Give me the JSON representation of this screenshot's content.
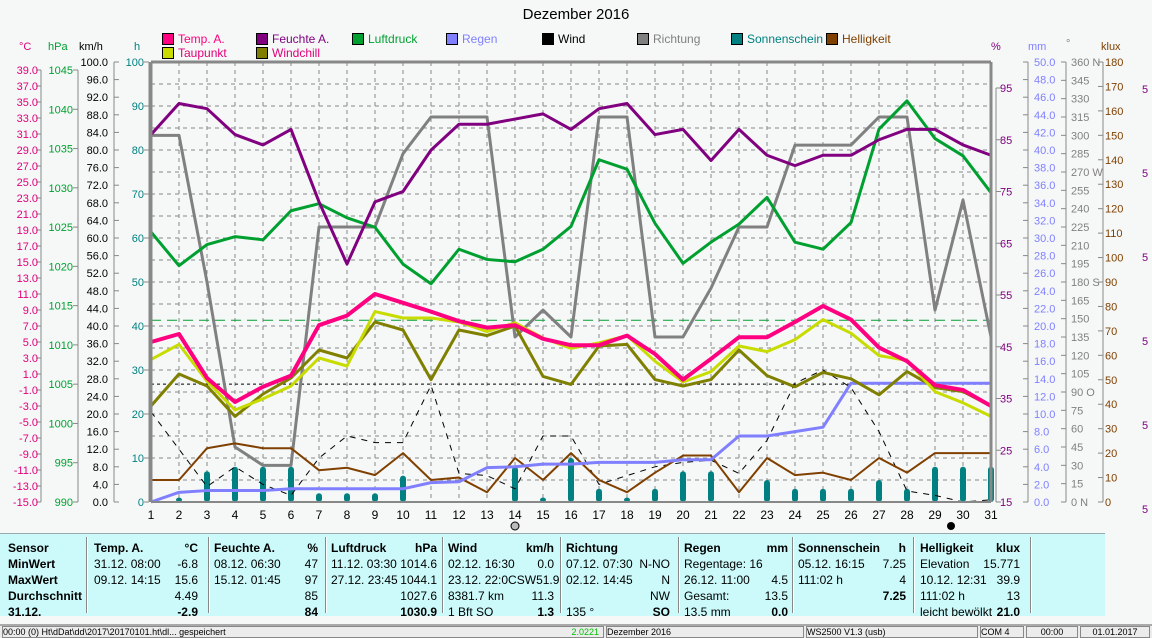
{
  "chart_data": {
    "type": "line",
    "title": "Dezember 2016",
    "x": [
      1,
      2,
      3,
      4,
      5,
      6,
      7,
      8,
      9,
      10,
      11,
      12,
      13,
      14,
      15,
      16,
      17,
      18,
      19,
      20,
      21,
      22,
      23,
      24,
      25,
      26,
      27,
      28,
      29,
      30,
      31
    ],
    "legend": [
      {
        "name": "Temp. A.",
        "color": "#ff0080"
      },
      {
        "name": "Taupunkt",
        "color": "#c8dc00"
      },
      {
        "name": "Feuchte A.",
        "color": "#800080"
      },
      {
        "name": "Windchill",
        "color": "#808000"
      },
      {
        "name": "Luftdruck",
        "color": "#00a030"
      },
      {
        "name": "Regen",
        "color": "#8080ff"
      },
      {
        "name": "Wind",
        "color": "#000000"
      },
      {
        "name": "Richtung",
        "color": "#808080"
      },
      {
        "name": "Sonnenschein",
        "color": "#008080"
      },
      {
        "name": "Helligkeit",
        "color": "#804000"
      }
    ],
    "axes": {
      "temp": {
        "unit": "°C",
        "color": "#e0007a",
        "min": -15,
        "max": 40,
        "ticks": [
          "39.0",
          "37.0",
          "35.0",
          "33.0",
          "31.0",
          "29.0",
          "27.0",
          "25.0",
          "23.0",
          "21.0",
          "19.0",
          "17.0",
          "15.0",
          "13.0",
          "11.0",
          "9.0",
          "7.0",
          "5.0",
          "3.0",
          "1.0",
          "-1.0",
          "-3.0",
          "-5.0",
          "-7.0",
          "-9.0",
          "-11.0",
          "-13.0",
          "-15.0"
        ]
      },
      "pressure": {
        "unit": "hPa",
        "color": "#00a030",
        "min": 990,
        "max": 1046,
        "ticks": [
          "1045",
          "1040",
          "1035",
          "1030",
          "1025",
          "1020",
          "1015",
          "1010",
          "1005",
          "1000",
          "995",
          "990"
        ]
      },
      "wind": {
        "unit": "km/h",
        "color": "#000000",
        "min": 0,
        "max": 100,
        "ticks": [
          "100.0",
          "96.0",
          "92.0",
          "88.0",
          "84.0",
          "80.0",
          "76.0",
          "72.0",
          "68.0",
          "64.0",
          "60.0",
          "56.0",
          "52.0",
          "48.0",
          "44.0",
          "40.0",
          "36.0",
          "32.0",
          "28.0",
          "24.0",
          "20.0",
          "16.0",
          "12.0",
          "8.0",
          "4.0",
          "0.0"
        ]
      },
      "sun": {
        "unit": "h",
        "color": "#008080",
        "min": 0,
        "max": 100,
        "ticks": [
          "100",
          "90",
          "80",
          "70",
          "60",
          "50",
          "40",
          "30",
          "20",
          "10",
          "0"
        ]
      },
      "humidity": {
        "unit": "%",
        "color": "#800080",
        "min": 15,
        "max": 100,
        "ticks": [
          "95",
          "85",
          "75",
          "65",
          "55",
          "45",
          "35",
          "25",
          "15"
        ]
      },
      "rain": {
        "unit": "mm",
        "color": "#8080ff",
        "min": 0,
        "max": 50,
        "ticks": [
          "50.0",
          "48.0",
          "46.0",
          "44.0",
          "42.0",
          "40.0",
          "38.0",
          "36.0",
          "34.0",
          "32.0",
          "30.0",
          "28.0",
          "26.0",
          "24.0",
          "22.0",
          "20.0",
          "18.0",
          "16.0",
          "14.0",
          "12.0",
          "10.0",
          "8.0",
          "6.0",
          "4.0",
          "2.0",
          "0.0"
        ]
      },
      "direction": {
        "unit": "°",
        "color": "#808080",
        "min": 0,
        "max": 360,
        "ticks": [
          "360 N",
          "345",
          "330",
          "315",
          "300",
          "285",
          "270 W",
          "255",
          "240",
          "225",
          "210",
          "195",
          "180 S",
          "165",
          "150",
          "135",
          "120",
          "105",
          "90  O",
          "75",
          "60",
          "45",
          "30",
          "15",
          "0   N"
        ]
      },
      "light": {
        "unit": "klux",
        "color": "#804000",
        "min": 0,
        "max": 180,
        "ticks": [
          "180",
          "170",
          "160",
          "150",
          "140",
          "130",
          "120",
          "110",
          "100",
          "90",
          "80",
          "70",
          "60",
          "50",
          "40",
          "30",
          "20",
          "10",
          "0"
        ]
      }
    },
    "series": [
      {
        "name": "Temp. A.",
        "axis": "temp",
        "values": [
          5.0,
          6.0,
          0.5,
          -2.5,
          -0.6,
          0.8,
          7.1,
          8.3,
          11.0,
          9.9,
          8.8,
          7.6,
          6.8,
          7.1,
          5.4,
          4.6,
          4.6,
          5.8,
          3.5,
          0.3,
          2.9,
          5.6,
          5.6,
          7.5,
          9.5,
          7.8,
          4.3,
          2.6,
          -0.4,
          -1.0,
          -3.0
        ]
      },
      {
        "name": "Taupunkt",
        "axis": "temp",
        "values": [
          2.8,
          4.7,
          0.1,
          -3.5,
          -2.1,
          -0.5,
          3.0,
          2.0,
          8.8,
          8.0,
          8.0,
          7.5,
          6.3,
          7.4,
          5.5,
          4.2,
          4.9,
          5.8,
          2.6,
          0.0,
          1.3,
          4.5,
          3.8,
          5.3,
          7.8,
          6.1,
          3.3,
          2.7,
          -1.2,
          -2.6,
          -4.3
        ]
      },
      {
        "name": "Windchill",
        "axis": "temp",
        "values": [
          -3.0,
          1.0,
          -0.5,
          -4.3,
          -1.5,
          0.5,
          4.0,
          3.0,
          7.5,
          6.5,
          0.3,
          6.5,
          5.8,
          7.0,
          0.7,
          -0.3,
          4.5,
          4.7,
          0.3,
          -0.5,
          0.3,
          4.0,
          0.8,
          -0.6,
          1.2,
          0.4,
          -1.6,
          1.3,
          -0.7,
          -1.2,
          -3.0
        ]
      },
      {
        "name": "Feuchte A.",
        "axis": "humidity",
        "values": [
          86,
          92,
          91,
          86,
          84,
          87,
          73,
          61,
          73,
          75,
          83,
          88,
          88,
          89,
          90,
          87,
          91,
          92,
          86,
          87,
          81,
          87,
          82,
          80,
          82,
          82,
          85,
          87,
          87,
          84,
          82
        ]
      },
      {
        "name": "Luftdruck",
        "axis": "pressure",
        "values": [
          1024.4,
          1020.1,
          1022.8,
          1023.8,
          1023.4,
          1027.1,
          1028.0,
          1026.2,
          1025.0,
          1020.3,
          1017.8,
          1022.2,
          1020.9,
          1020.6,
          1022.2,
          1025.1,
          1033.6,
          1032.4,
          1025.5,
          1020.4,
          1023.1,
          1025.4,
          1028.8,
          1023.1,
          1022.2,
          1025.6,
          1037.5,
          1041.1,
          1036.3,
          1034.1,
          1029.4
        ]
      },
      {
        "name": "Regen",
        "axis": "rain",
        "values": [
          0.0,
          1.1,
          1.3,
          1.3,
          1.3,
          1.5,
          1.5,
          1.5,
          1.5,
          1.5,
          2.2,
          2.3,
          3.9,
          4.0,
          4.3,
          4.3,
          4.5,
          4.5,
          4.5,
          4.8,
          4.8,
          7.5,
          7.5,
          8.0,
          8.5,
          13.5,
          13.5,
          13.5,
          13.5,
          13.5,
          13.5
        ]
      },
      {
        "name": "Wind",
        "axis": "wind",
        "values": [
          20.5,
          12.0,
          3.5,
          8.0,
          4.0,
          1.5,
          10.0,
          15.0,
          13.5,
          13.5,
          26.5,
          6.5,
          6.0,
          3.0,
          15.0,
          15.0,
          4.0,
          6.0,
          8.0,
          9.0,
          9.5,
          6.5,
          14.0,
          27.0,
          30.0,
          26.0,
          16.0,
          2.5,
          1.5,
          -1.0,
          0.5
        ]
      },
      {
        "name": "Richtung",
        "axis": "direction",
        "values": [
          300,
          300,
          180,
          45,
          30,
          30,
          225,
          225,
          225,
          285,
          315,
          315,
          315,
          135,
          157,
          135,
          315,
          315,
          135,
          135,
          175,
          225,
          225,
          292,
          292,
          292,
          315,
          315,
          157,
          247,
          135
        ]
      },
      {
        "name": "Sonnenschein",
        "axis": "sun",
        "type": "bar",
        "values": [
          0,
          1,
          7,
          8,
          8,
          8,
          2,
          2,
          2,
          6,
          0,
          0,
          0,
          8,
          1,
          10,
          3,
          1,
          3,
          7,
          7,
          0,
          5,
          3,
          3,
          3,
          5,
          3,
          8,
          8,
          8
        ]
      },
      {
        "name": "Helligkeit",
        "axis": "light",
        "values": [
          9,
          9,
          22,
          24,
          22,
          22,
          13,
          14,
          11,
          20,
          9,
          10,
          4,
          18,
          9,
          20,
          9,
          4,
          12,
          19,
          19,
          4,
          18,
          11,
          12,
          9,
          18,
          12,
          20,
          20,
          20
        ]
      }
    ],
    "reference_lines": [
      {
        "axis": "sun",
        "value": 41.3,
        "color": "#00a030",
        "style": "dashed"
      },
      {
        "axis": "sun",
        "value": 26.8,
        "color": "#000000",
        "style": "dotted"
      }
    ],
    "xlabel": "",
    "grid": true
  },
  "legend_title": "Dezember 2016",
  "stats": {
    "sensor": {
      "header": "Sensor",
      "rows": [
        "MinWert",
        "MaxWert",
        "Durchschnitt",
        "31.12."
      ]
    },
    "temp": {
      "header": "Temp. A.",
      "unit": "°C",
      "rows": [
        [
          "31.12.  08:00",
          "-6.8"
        ],
        [
          "09.12.  14:15",
          "15.6"
        ],
        [
          "",
          "4.49"
        ],
        [
          "",
          "-2.9"
        ]
      ]
    },
    "humidity": {
      "header": "Feuchte A.",
      "unit": "%",
      "rows": [
        [
          "08.12.  06:30",
          "47"
        ],
        [
          "15.12.  01:45",
          "97"
        ],
        [
          "",
          "85"
        ],
        [
          "",
          "84"
        ]
      ]
    },
    "pressure": {
      "header": "Luftdruck",
      "unit": "hPa",
      "rows": [
        [
          "11.12.  03:30",
          "1014.6"
        ],
        [
          "27.12.  23:45",
          "1044.1"
        ],
        [
          "",
          "1027.6"
        ],
        [
          "",
          "1030.9"
        ]
      ]
    },
    "wind": {
      "header": "Wind",
      "unit": "km/h",
      "rows": [
        [
          "02.12.  16:30",
          "0.0"
        ],
        [
          "23.12.  22:0CSW",
          "51.9"
        ],
        [
          "8381.7 km",
          "11.3"
        ],
        [
          "1 Bft SO",
          "1.3"
        ]
      ]
    },
    "direction": {
      "header": "Richtung",
      "unit": "",
      "rows": [
        [
          "07.12.  07:30",
          "N-NO"
        ],
        [
          "02.12.  14:45",
          "N"
        ],
        [
          "",
          "NW"
        ],
        [
          "135 °",
          "SO"
        ]
      ]
    },
    "rain": {
      "header": "Regen",
      "unit": "mm",
      "rows": [
        [
          "Regentage: 16",
          ""
        ],
        [
          "26.12.  11:00",
          "4.5"
        ],
        [
          "Gesamt:",
          "13.5"
        ],
        [
          "13.5 mm",
          "0.0"
        ]
      ]
    },
    "sunshine": {
      "header": "Sonnenschein",
      "unit": "h",
      "rows": [
        [
          "",
          ""
        ],
        [
          "05.12.  16:15",
          "7.25"
        ],
        [
          "111:02 h",
          "4"
        ],
        [
          "",
          "7.25"
        ]
      ]
    },
    "light": {
      "header": "Helligkeit",
      "unit": "klux",
      "rows": [
        [
          "Elevation",
          "15.771"
        ],
        [
          "10.12.  12:31",
          "39.9"
        ],
        [
          "111:02 h",
          "13"
        ],
        [
          "leicht bewölkt",
          "21.0"
        ]
      ]
    }
  },
  "right_edge_marks": [
    "5",
    "5",
    "5",
    "5",
    "5",
    "5"
  ],
  "statusbar": {
    "path": "00:00  (0)  Ht\\dDat\\dd\\2017\\20170101.ht\\dl...   gespeichert",
    "version": "2.0221",
    "month": "Dezember 2016",
    "device": "WS2500 V1.3   (usb)",
    "port": "COM 4",
    "time": "00:00",
    "date": "01.01.2017"
  }
}
